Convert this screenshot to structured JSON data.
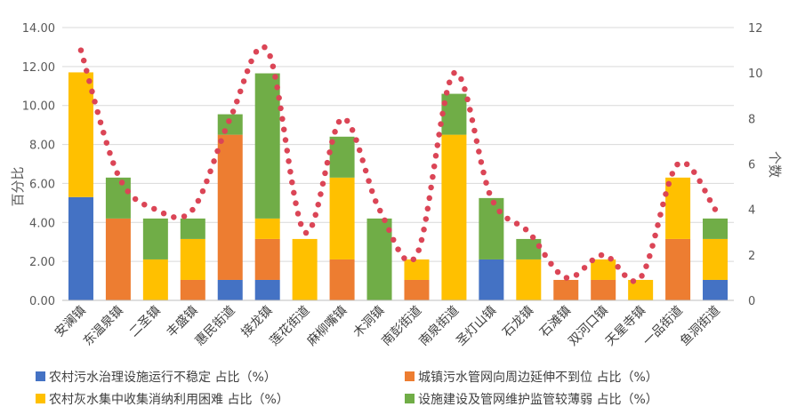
{
  "chart_data": {
    "type": "bar",
    "stacked": true,
    "categories": [
      "安澜镇",
      "东温泉镇",
      "二圣镇",
      "丰盛镇",
      "惠民街道",
      "接龙镇",
      "莲花街道",
      "麻柳嘴镇",
      "木洞镇",
      "南彭街道",
      "南泉街道",
      "圣灯山镇",
      "石龙镇",
      "石滩镇",
      "双河口镇",
      "天星寺镇",
      "一品街道",
      "鱼洞街道"
    ],
    "series": [
      {
        "name": "农村污水治理设施运行不稳定 占比（%）",
        "color": "#4472C4",
        "values": [
          5.3,
          0,
          0,
          0,
          1.05,
          1.05,
          0,
          0,
          0,
          0,
          0,
          2.1,
          0,
          0,
          0,
          0,
          0,
          1.05
        ]
      },
      {
        "name": "城镇污水管网向周边延伸不到位 占比（%）",
        "color": "#ED7D31",
        "values": [
          0,
          4.2,
          0,
          1.05,
          7.45,
          2.1,
          0,
          2.1,
          0,
          1.05,
          0,
          0,
          0,
          1.05,
          1.05,
          0,
          3.15,
          0
        ]
      },
      {
        "name": "农村灰水集中收集消纳利用困难 占比（%）",
        "color": "#FFC000",
        "values": [
          6.4,
          0,
          2.1,
          2.1,
          0,
          1.05,
          3.15,
          4.2,
          0,
          1.05,
          8.5,
          0,
          2.1,
          0,
          1.05,
          1.05,
          3.15,
          2.1
        ]
      },
      {
        "name": "设施建设及管网维护监管较薄弱 占比（%）",
        "color": "#70AD47",
        "values": [
          0,
          2.1,
          2.1,
          1.05,
          1.05,
          7.45,
          0,
          2.1,
          4.2,
          0,
          2.1,
          3.15,
          1.05,
          0,
          0,
          0,
          0,
          1.05
        ]
      }
    ],
    "line": {
      "color": "#DB4556",
      "style": "dotted smooth",
      "values": [
        11,
        5.5,
        4,
        4,
        8,
        11,
        3,
        8,
        4,
        2,
        10,
        4.5,
        3,
        1,
        2,
        1,
        6,
        4
      ]
    },
    "ylabel": "百分比",
    "y2label": "个数",
    "ylim": [
      0,
      14
    ],
    "y2lim": [
      0,
      12
    ],
    "yticks": [
      "0.00",
      "2.00",
      "4.00",
      "6.00",
      "8.00",
      "10.00",
      "12.00",
      "14.00"
    ],
    "y2ticks": [
      "0",
      "2",
      "4",
      "6",
      "8",
      "10",
      "12"
    ],
    "grid": true,
    "legend_position": "bottom"
  }
}
